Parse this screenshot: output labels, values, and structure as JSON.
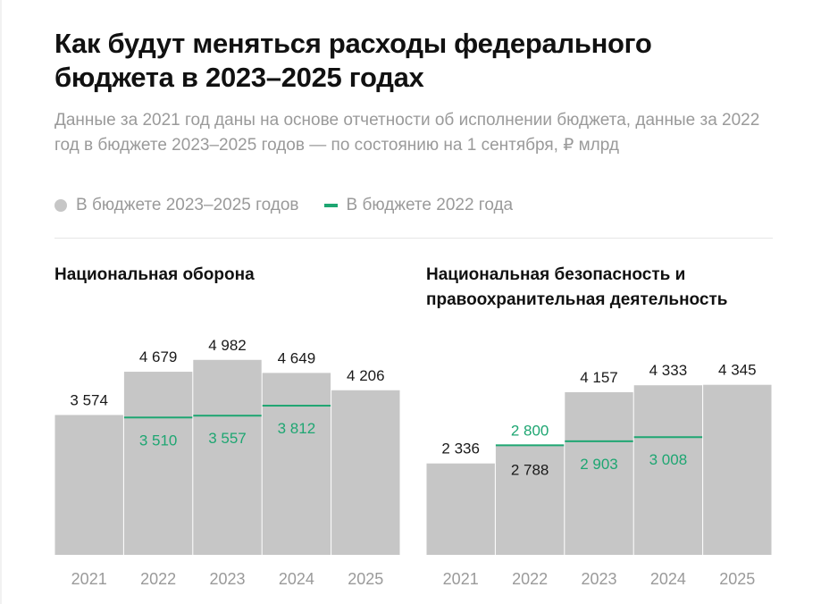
{
  "title": "Как будут меняться расходы федерального бюджета в 2023–2025 годах",
  "subtitle": "Данные за 2021 год даны на основе отчетности об исполнении бюджета, данные за 2022 год в бюджете 2023–2025 годов — по состоянию на 1 сентября, ₽ млрд",
  "legend": {
    "item1": "В бюджете 2023–2025 годов",
    "item2": "В бюджете 2022 года"
  },
  "colors": {
    "bar": "#c6c6c6",
    "line": "#1ea672",
    "text": "#1a1a1a",
    "muted": "#9a9a9a"
  },
  "chart_data": [
    {
      "type": "bar",
      "title": "Национальная оборона",
      "categories": [
        "2021",
        "2022",
        "2023",
        "2024",
        "2025"
      ],
      "series": [
        {
          "name": "В бюджете 2023–2025 годов",
          "values": [
            3574,
            4679,
            4982,
            4649,
            4206
          ],
          "labels": [
            "3 574",
            "4 679",
            "4 982",
            "4 649",
            "4 206"
          ]
        },
        {
          "name": "В бюджете 2022 года",
          "values": [
            null,
            3510,
            3557,
            3812,
            null
          ],
          "labels": [
            null,
            "3 510",
            "3 557",
            "3 812",
            null
          ]
        }
      ],
      "ylim": [
        0,
        5000
      ]
    },
    {
      "type": "bar",
      "title": "Национальная безопасность и правоохранительная деятельность",
      "categories": [
        "2021",
        "2022",
        "2023",
        "2024",
        "2025"
      ],
      "series": [
        {
          "name": "В бюджете 2023–2025 годов",
          "values": [
            2336,
            2788,
            4157,
            4333,
            4345
          ],
          "labels": [
            "2 336",
            "2 788",
            "4 157",
            "4 333",
            "4 345"
          ]
        },
        {
          "name": "В бюджете 2022 года",
          "values": [
            null,
            2800,
            2903,
            3008,
            null
          ],
          "labels": [
            null,
            "2 800",
            "2 903",
            "3 008",
            null
          ]
        }
      ],
      "ylim": [
        0,
        5000
      ]
    }
  ]
}
